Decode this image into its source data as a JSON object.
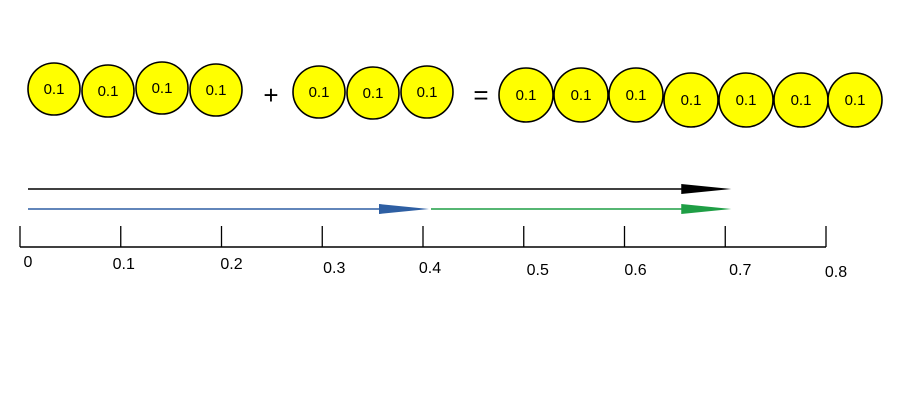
{
  "colors": {
    "counter_fill": "#ffff00",
    "counter_stroke": "#000000",
    "total_arrow": "#000000",
    "first_arrow": "#2e5fa3",
    "second_arrow": "#1f9e45",
    "number_line": "#000000"
  },
  "equation": {
    "plus_sign": "+",
    "equals_sign": "=",
    "first_group": [
      "0.1",
      "0.1",
      "0.1",
      "0.1"
    ],
    "second_group": [
      "0.1",
      "0.1",
      "0.1"
    ],
    "result_group": [
      "0.1",
      "0.1",
      "0.1",
      "0.1",
      "0.1",
      "0.1",
      "0.1"
    ]
  },
  "number_line": {
    "min": 0,
    "max": 0.8,
    "ticks": [
      "0",
      "0.1",
      "0.2",
      "0.3",
      "0.4",
      "0.5",
      "0.6",
      "0.7",
      "0.8"
    ]
  },
  "arrows": {
    "total": {
      "from": 0,
      "to": 0.7
    },
    "first": {
      "from": 0,
      "to": 0.4
    },
    "second": {
      "from": 0.4,
      "to": 0.7
    }
  }
}
